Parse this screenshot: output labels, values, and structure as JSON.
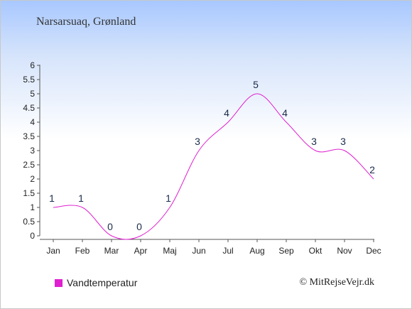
{
  "chart_data": {
    "type": "line",
    "title": "Narsarsuaq, Grønland",
    "categories": [
      "Jan",
      "Feb",
      "Mar",
      "Apr",
      "Maj",
      "Jun",
      "Jul",
      "Aug",
      "Sep",
      "Okt",
      "Nov",
      "Dec"
    ],
    "series": [
      {
        "name": "Vandtemperatur",
        "values": [
          1,
          1,
          0,
          0,
          1,
          3,
          4,
          5,
          4,
          3,
          3,
          2
        ],
        "color": "#e020d0"
      }
    ],
    "data_labels": [
      "1",
      "1",
      "0",
      "0",
      "1",
      "3",
      "4",
      "5",
      "4",
      "3",
      "3",
      "2"
    ],
    "ylim": [
      0,
      6
    ],
    "yticks": [
      "0",
      "0.5",
      "1",
      "1.5",
      "2",
      "2.5",
      "3",
      "3.5",
      "4",
      "4.5",
      "5",
      "5.5",
      "6"
    ],
    "grid": false,
    "legend_placement": "bottom-left"
  },
  "footer": {
    "copyright": "© MitRejseVejr.dk"
  }
}
